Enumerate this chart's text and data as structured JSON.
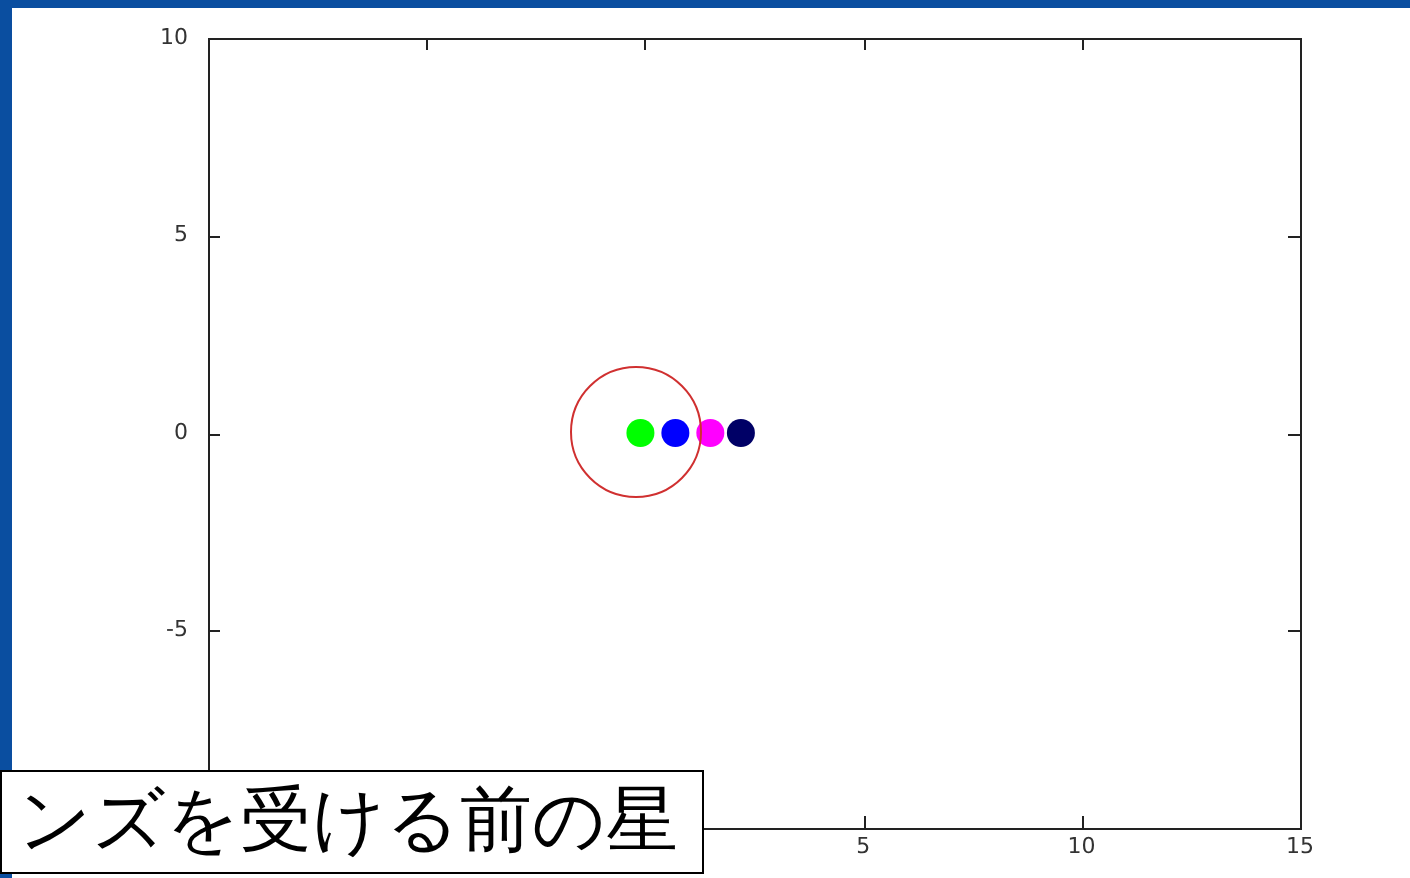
{
  "chart_data": {
    "type": "scatter",
    "xlim": [
      -10,
      15
    ],
    "xticks": [
      {
        "value": -5,
        "label": null
      },
      {
        "value": 0,
        "label": null
      },
      5,
      10,
      15
    ],
    "ylim": [
      -10,
      10
    ],
    "yticks": [
      -5,
      0,
      5,
      10
    ],
    "grid": false,
    "legend": false,
    "series": [
      {
        "type": "scatter",
        "marker": "circle",
        "x": [
          -0.1,
          0.7,
          1.5,
          2.2
        ],
        "values": [
          0,
          0,
          0,
          0
        ],
        "colors": [
          "#00ff00",
          "#0000ff",
          "#ff00ff",
          "#000066"
        ]
      }
    ],
    "annotations": [
      "ンズを受ける前の星"
    ]
  }
}
